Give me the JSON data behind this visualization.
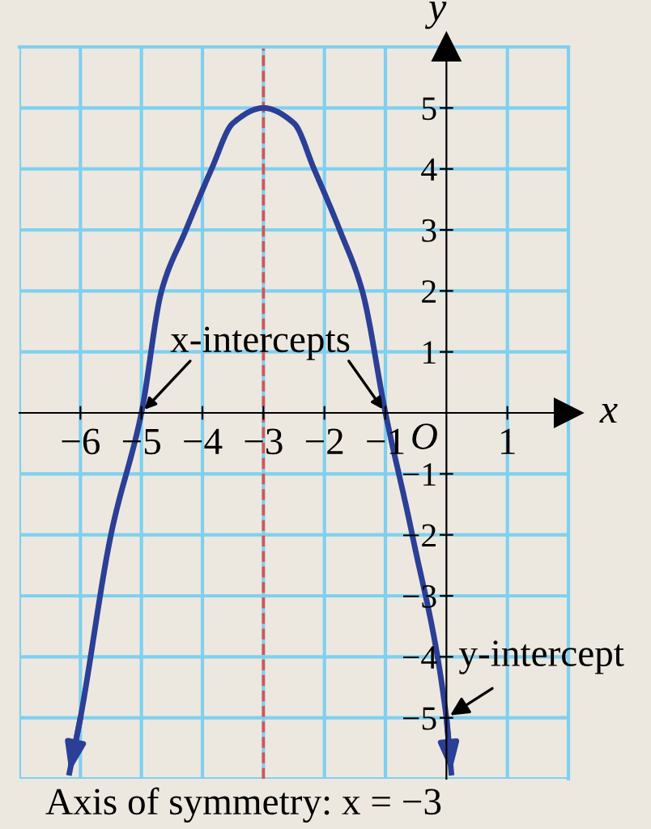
{
  "chart_data": {
    "type": "line",
    "xlabel": "x",
    "ylabel": "y",
    "x": [
      -6.18,
      -6,
      -5.5,
      -5,
      -4.67,
      -4.27,
      -3.85,
      -3.5,
      -3,
      -2.5,
      -2.17,
      -1.75,
      -1.38,
      -1,
      -0.56,
      0,
      0.08
    ],
    "series": [
      {
        "color": "#2b3f96",
        "values": [
          -5.9,
          -5,
          -2,
          0,
          2,
          3,
          4,
          4.75,
          5,
          4.75,
          4,
          3,
          2,
          0,
          -2,
          -5,
          -5.9
        ]
      }
    ],
    "xlim": [
      -7,
      2
    ],
    "ylim": [
      -6,
      6
    ],
    "xticks": [
      -6,
      -5,
      -4,
      -3,
      -2,
      -1,
      1
    ],
    "yticks": [
      -5,
      -4,
      -3,
      -2,
      -1,
      1,
      2,
      3,
      4,
      5
    ],
    "grid": true,
    "marker": "none",
    "line_style": "solid",
    "ref_lines": [
      {
        "axis": "x",
        "value": -3,
        "label": "Axis of symmetry: x = −3",
        "color": "#d9534f",
        "line_style": "dashed"
      }
    ],
    "annotations": [
      "x-intercepts",
      {
        "text": "y-intercept",
        "x": 0,
        "y": -5
      },
      "O"
    ]
  }
}
